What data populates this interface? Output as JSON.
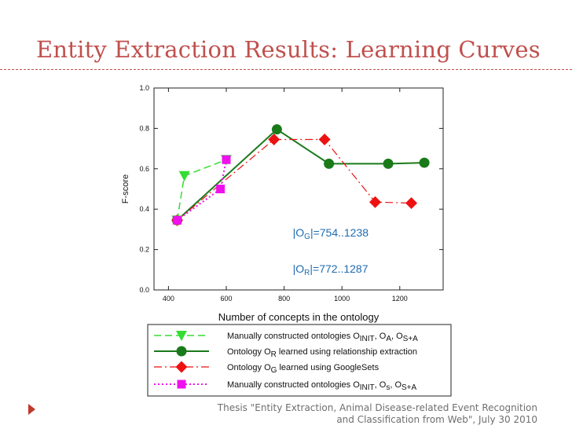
{
  "slide": {
    "title": "Entity Extraction Results: Learning Curves",
    "title_color": "#c0504d",
    "rule_color": "#c0504d",
    "bullet_color": "#c0392b",
    "footer_line1": "Thesis \"Entity Extraction, Animal Disease-related Event Recognition",
    "footer_line2": "and Classification from Web\", July 30 2010"
  },
  "chart_data": {
    "type": "line",
    "title": "",
    "xlabel": "Number of concepts in the ontology",
    "ylabel": "F-score",
    "xlim": [
      350,
      1350
    ],
    "ylim": [
      0.0,
      1.0
    ],
    "x_ticks": [
      400,
      600,
      800,
      1000,
      1200
    ],
    "y_ticks": [
      "0.0",
      "0.2",
      "0.4",
      "0.6",
      "0.8",
      "1.0"
    ],
    "grid": false,
    "legend_position": "below-chart",
    "annotations": [
      {
        "prefix": "|O",
        "sub": "G",
        "suffix": "|=754..1238",
        "color": "#1f6bb0",
        "x": 830,
        "y": 0.265
      },
      {
        "prefix": "|O",
        "sub": "R",
        "suffix": "|=772..1287",
        "color": "#1f6bb0",
        "x": 830,
        "y": 0.085
      }
    ],
    "series": [
      {
        "legend": [
          {
            "t": "Manually constructed ontologies O"
          },
          {
            "t": "INIT",
            "sub": true
          },
          {
            "t": ", O"
          },
          {
            "t": "A",
            "sub": true
          },
          {
            "t": ", O"
          },
          {
            "t": "S+A",
            "sub": true
          }
        ],
        "color": "#33dd33",
        "dash": "9,5",
        "marker": "triangle-down",
        "width": 1.5,
        "x": [
          430,
          455,
          600
        ],
        "y": [
          0.345,
          0.565,
          0.645
        ]
      },
      {
        "legend": [
          {
            "t": "Ontology O"
          },
          {
            "t": "R",
            "sub": true
          },
          {
            "t": " learned using relationship extraction"
          }
        ],
        "color": "#1a7a1a",
        "dash": "",
        "marker": "circle",
        "width": 2,
        "x": [
          430,
          775,
          955,
          1160,
          1285
        ],
        "y": [
          0.345,
          0.795,
          0.625,
          0.625,
          0.63
        ]
      },
      {
        "legend": [
          {
            "t": "Ontology O"
          },
          {
            "t": "G",
            "sub": true
          },
          {
            "t": " learned using GoogleSets"
          }
        ],
        "color": "#ee1111",
        "dash": "10,4,2,4",
        "marker": "diamond",
        "width": 1.2,
        "x": [
          430,
          765,
          940,
          1115,
          1240
        ],
        "y": [
          0.345,
          0.745,
          0.745,
          0.435,
          0.43
        ]
      },
      {
        "legend": [
          {
            "t": "Manually constructed ontologies O"
          },
          {
            "t": "INIT",
            "sub": true
          },
          {
            "t": ", O"
          },
          {
            "t": "s",
            "sub": true
          },
          {
            "t": ", O"
          },
          {
            "t": "S+A",
            "sub": true
          }
        ],
        "color": "#ee11ee",
        "dash": "2,3",
        "marker": "square",
        "width": 2,
        "x": [
          430,
          580,
          600
        ],
        "y": [
          0.345,
          0.5,
          0.645
        ]
      }
    ]
  }
}
